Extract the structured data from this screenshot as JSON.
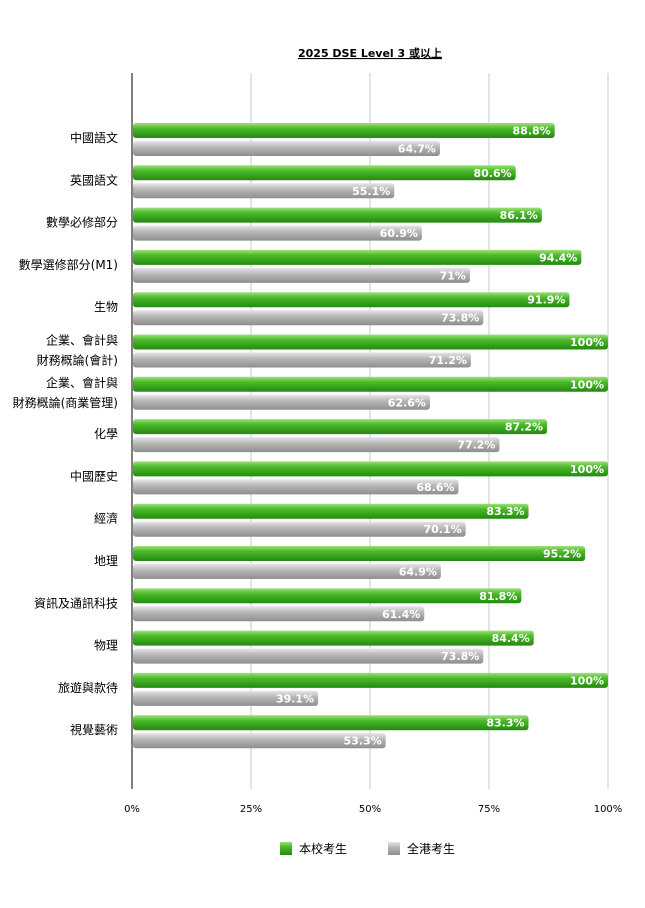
{
  "chart_data": {
    "type": "bar",
    "orientation": "horizontal",
    "title": "2025 DSE Level 3 或以上",
    "xlim": [
      0,
      100
    ],
    "ticks": [
      0,
      25,
      50,
      75,
      100
    ],
    "tick_labels": [
      "0%",
      "25%",
      "50%",
      "75%",
      "100%"
    ],
    "grid": true,
    "legend_position": "bottom",
    "categories": [
      [
        "中國語文"
      ],
      [
        "英國語文"
      ],
      [
        "數學必修部分"
      ],
      [
        "數學選修部分(M1)"
      ],
      [
        "生物"
      ],
      [
        "企業、會計與",
        "財務概論(會計)"
      ],
      [
        "企業、會計與",
        "財務概論(商業管理)"
      ],
      [
        "化學"
      ],
      [
        "中國歷史"
      ],
      [
        "經濟"
      ],
      [
        "地理"
      ],
      [
        "資訊及通訊科技"
      ],
      [
        "物理"
      ],
      [
        "旅遊與款待"
      ],
      [
        "視覺藝術"
      ]
    ],
    "series": [
      {
        "name": "本校考生",
        "color": "#3aa51f",
        "values": [
          88.8,
          80.6,
          86.1,
          94.4,
          91.9,
          100,
          100,
          87.2,
          100,
          83.3,
          95.2,
          81.8,
          84.4,
          100,
          83.3
        ],
        "labels": [
          "88.8%",
          "80.6%",
          "86.1%",
          "94.4%",
          "91.9%",
          "100%",
          "100%",
          "87.2%",
          "100%",
          "83.3%",
          "95.2%",
          "81.8%",
          "84.4%",
          "100%",
          "83.3%"
        ]
      },
      {
        "name": "全港考生",
        "color": "#aaaaaa",
        "values": [
          64.7,
          55.1,
          60.9,
          71,
          73.8,
          71.2,
          62.6,
          77.2,
          68.6,
          70.1,
          64.9,
          61.4,
          73.8,
          39.1,
          53.3
        ],
        "labels": [
          "64.7%",
          "55.1%",
          "60.9%",
          "71%",
          "73.8%",
          "71.2%",
          "62.6%",
          "77.2%",
          "68.6%",
          "70.1%",
          "64.9%",
          "61.4%",
          "73.8%",
          "39.1%",
          "53.3%"
        ]
      }
    ]
  }
}
